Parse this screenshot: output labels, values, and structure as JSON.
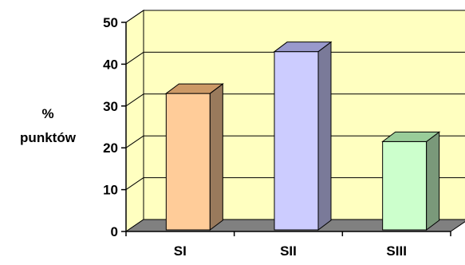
{
  "chart_data": {
    "type": "bar",
    "title": "",
    "xlabel": "",
    "ylabel_line1": "%",
    "ylabel_line2": "punktów",
    "categories": [
      "SI",
      "SII",
      "SIII"
    ],
    "values": [
      33,
      43,
      21.5
    ],
    "ylim": [
      0,
      50
    ],
    "yticks": [
      "0",
      "10",
      "20",
      "30",
      "40",
      "50"
    ],
    "grid": true,
    "legend": "none",
    "colors": {
      "wall": "#FFFFC0",
      "floor": "#808080",
      "bar_front": [
        "#FFCC99",
        "#CCCCFF",
        "#CCFFCC"
      ],
      "bar_side": [
        "#997A5C",
        "#7A7A99",
        "#7A997A"
      ],
      "bar_top": [
        "#CC9966",
        "#9999CC",
        "#99CC99"
      ]
    }
  }
}
